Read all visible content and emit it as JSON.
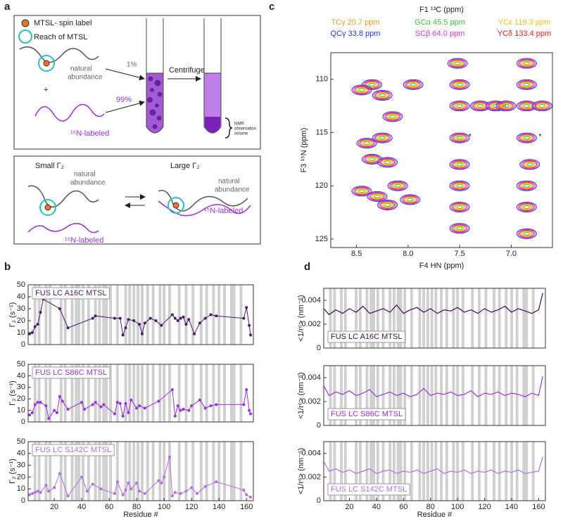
{
  "panel_labels": [
    "a",
    "b",
    "c",
    "d"
  ],
  "diagram": {
    "spin_label": "MTSL- spin label",
    "reach": "Reach of MTSL",
    "natural_abundance": [
      "natural",
      "abundance"
    ],
    "one_percent": "1%",
    "plus": "+",
    "ninety_nine_percent": "99%",
    "labeled": "¹⁵N-labeled",
    "centrifuge": "Centrifuge",
    "nmr_volume": [
      "NMR",
      "observation",
      "volume"
    ],
    "small": "Small Γ₂",
    "large": "Large Γ₂"
  },
  "shaded_residues": [
    6,
    9,
    14,
    17,
    25,
    28,
    33,
    36,
    38,
    41,
    45,
    50,
    53,
    56,
    58,
    61,
    66,
    72,
    75,
    78,
    81,
    84,
    88,
    92,
    97,
    100,
    104,
    111,
    116,
    121,
    127,
    131,
    136,
    140,
    144,
    149,
    151,
    156
  ],
  "chart_data": [
    {
      "type": "contour",
      "title": "F1 ¹³C (ppm)",
      "xlabel": "F4 HN (ppm)",
      "ylabel": "F3 ¹⁵N (ppm)",
      "xlim": [
        8.75,
        6.6
      ],
      "ylim": [
        125.8,
        107.5
      ],
      "xticks": [
        8.5,
        {
          "value": 8,
          "label": "8.0"
        },
        7.5,
        {
          "value": 7,
          "label": "7.0"
        }
      ],
      "yticks": [
        110,
        115,
        120,
        125
      ],
      "series": [
        {
          "name": "TCγ 20.7 ppm",
          "color": "#f29a1e"
        },
        {
          "name": "GCα 45.5 ppm",
          "color": "#3cc43c"
        },
        {
          "name": "YCε 119.3 ppm",
          "color": "#e8c21c"
        },
        {
          "name": "QCγ 33.8 ppm",
          "color": "#2236e0"
        },
        {
          "name": "SCβ 64.0 ppm",
          "color": "#e030e0"
        },
        {
          "name": "YCδ 133.4 ppm",
          "color": "#e01e1e"
        }
      ],
      "peaks": {
        "x": [
          8.35,
          8.25,
          8.45,
          8.4,
          8.25,
          8.35,
          8.2,
          8.45,
          8.3,
          8.2,
          8.1,
          7.98,
          8.15,
          7.95,
          7.52,
          7.5,
          7.5,
          7.5,
          7.5,
          7.5,
          7.5,
          7.5,
          6.85,
          6.85,
          6.85,
          6.85,
          6.82,
          6.85,
          6.85,
          6.85,
          7.3,
          7.15,
          7.05,
          6.7
        ],
        "y": [
          110.5,
          111.5,
          111.0,
          116.0,
          115.5,
          117.5,
          117.8,
          120.5,
          121.0,
          121.8,
          120.0,
          121.3,
          113.5,
          110.5,
          108.5,
          110.5,
          112.5,
          115.5,
          118.0,
          120.0,
          122.0,
          124.0,
          108.5,
          110.5,
          112.5,
          115.5,
          118.0,
          120.0,
          122.0,
          124.5,
          112.5,
          112.5,
          112.5,
          112.5
        ]
      },
      "annotations": [
        {
          "text": "*",
          "x": 7.4,
          "y": 115.4
        },
        {
          "text": "*",
          "x": 6.72,
          "y": 115.4
        }
      ]
    },
    {
      "type": "line",
      "markers": true,
      "legend": "upper left",
      "ylabel": "Γ₂ (s⁻¹)",
      "xlim": [
        1,
        165
      ],
      "ylim": [
        0,
        50
      ],
      "yticks": [
        0,
        10,
        20,
        30,
        40,
        50
      ],
      "x": [
        2,
        4,
        6,
        8,
        10,
        12,
        24,
        30,
        48,
        50,
        64,
        68,
        70,
        72,
        74,
        78,
        82,
        84,
        86,
        90,
        94,
        98,
        106,
        108,
        110,
        112,
        114,
        116,
        118,
        122,
        126,
        130,
        134,
        138,
        158,
        160,
        162,
        163
      ],
      "series": [
        {
          "name": "FUS LC A16C MTSL",
          "color": "#4b1c6e",
          "values": [
            9,
            10,
            15,
            17,
            27,
            38,
            30,
            14,
            22,
            24,
            22,
            22,
            8,
            14,
            21,
            20,
            17,
            9,
            18,
            22,
            20,
            16,
            25,
            22,
            20,
            22,
            23,
            17,
            21,
            9,
            18,
            22,
            25,
            24,
            22,
            31,
            16,
            8
          ]
        }
      ]
    },
    {
      "type": "line",
      "markers": true,
      "legend": "upper left",
      "ylabel": "Γ₂ (s⁻¹)",
      "xlim": [
        1,
        165
      ],
      "ylim": [
        0,
        50
      ],
      "yticks": [
        0,
        10,
        20,
        30,
        40,
        50
      ],
      "x": [
        2,
        4,
        6,
        8,
        10,
        14,
        16,
        20,
        22,
        24,
        26,
        30,
        40,
        42,
        48,
        50,
        54,
        56,
        64,
        66,
        68,
        70,
        72,
        74,
        76,
        80,
        82,
        86,
        96,
        106,
        108,
        110,
        112,
        114,
        118,
        120,
        126,
        130,
        134,
        138,
        158,
        160,
        162,
        163
      ],
      "series": [
        {
          "name": "FUS LC S86C MTSL",
          "color": "#9a30e0",
          "values": [
            6,
            8,
            15,
            17,
            17,
            14,
            3,
            10,
            8,
            22,
            18,
            11,
            17,
            11,
            15,
            17,
            13,
            15,
            7,
            17,
            16,
            5,
            16,
            8,
            19,
            12,
            14,
            12,
            18,
            28,
            5,
            14,
            10,
            11,
            10,
            14,
            19,
            12,
            14,
            15,
            15,
            28,
            10,
            7
          ]
        }
      ]
    },
    {
      "type": "line",
      "markers": true,
      "legend": "upper left",
      "ylabel": "Γ₂ (s⁻¹)",
      "xlabel": "Residue #",
      "xlim": [
        1,
        165
      ],
      "ylim": [
        0,
        50
      ],
      "yticks": [
        0,
        10,
        20,
        30,
        40,
        50
      ],
      "xticks": [
        20,
        40,
        60,
        80,
        100,
        120,
        140,
        160
      ],
      "x": [
        2,
        4,
        6,
        8,
        10,
        14,
        16,
        20,
        24,
        30,
        40,
        44,
        48,
        54,
        64,
        66,
        70,
        72,
        74,
        76,
        80,
        82,
        86,
        96,
        98,
        100,
        104,
        106,
        108,
        112,
        116,
        120,
        124,
        130,
        138,
        158,
        160,
        163
      ],
      "series": [
        {
          "name": "FUS LC S142C MTSL",
          "color": "#b070e0",
          "values": [
            5,
            6,
            7,
            8,
            7,
            13,
            8,
            11,
            23,
            4,
            20,
            8,
            14,
            10,
            6,
            16,
            5,
            9,
            15,
            10,
            15,
            8,
            6,
            17,
            15,
            20,
            37,
            4,
            7,
            6,
            8,
            11,
            6,
            12,
            16,
            9,
            5,
            3
          ]
        }
      ]
    },
    {
      "type": "line",
      "markers": false,
      "legend": "lower left",
      "ylabel": "<1/r⁶> (nm⁻⁶)",
      "xlim": [
        1,
        165
      ],
      "ylim": [
        0,
        0.005
      ],
      "yticks": [
        0,
        0.002,
        0.004
      ],
      "x": [
        1,
        5,
        10,
        15,
        20,
        25,
        30,
        35,
        40,
        45,
        50,
        55,
        60,
        65,
        70,
        75,
        80,
        85,
        90,
        95,
        100,
        105,
        110,
        115,
        120,
        125,
        130,
        135,
        140,
        145,
        150,
        155,
        160,
        163
      ],
      "series": [
        {
          "name": "FUS LC A16C MTSL",
          "color": "#3a0f55",
          "values": [
            0.0033,
            0.0028,
            0.0032,
            0.0029,
            0.0033,
            0.003,
            0.0035,
            0.0029,
            0.0031,
            0.0033,
            0.003,
            0.0036,
            0.0029,
            0.0032,
            0.0034,
            0.003,
            0.0033,
            0.0029,
            0.0032,
            0.0031,
            0.0034,
            0.003,
            0.0032,
            0.0029,
            0.0033,
            0.003,
            0.0032,
            0.0035,
            0.003,
            0.0033,
            0.0031,
            0.0029,
            0.0032,
            0.0046
          ]
        }
      ]
    },
    {
      "type": "line",
      "markers": false,
      "legend": "lower left",
      "ylabel": "<1/r⁶> (nm⁻⁶)",
      "xlim": [
        1,
        165
      ],
      "ylim": [
        0,
        0.005
      ],
      "yticks": [
        0,
        0.002,
        0.004
      ],
      "x": [
        1,
        5,
        10,
        15,
        20,
        25,
        30,
        35,
        40,
        45,
        50,
        55,
        60,
        65,
        70,
        75,
        80,
        85,
        90,
        95,
        100,
        105,
        110,
        115,
        120,
        125,
        130,
        135,
        140,
        145,
        150,
        155,
        160,
        163
      ],
      "series": [
        {
          "name": "FUS LC S86C MTSL",
          "color": "#9a30e0",
          "values": [
            0.0033,
            0.0025,
            0.0028,
            0.0026,
            0.0029,
            0.0025,
            0.0027,
            0.003,
            0.0024,
            0.0026,
            0.0028,
            0.0025,
            0.0027,
            0.0024,
            0.0026,
            0.0031,
            0.0025,
            0.0027,
            0.0026,
            0.0028,
            0.0025,
            0.0026,
            0.0029,
            0.0024,
            0.0027,
            0.0026,
            0.0028,
            0.0025,
            0.0027,
            0.0026,
            0.0024,
            0.0027,
            0.0025,
            0.0041
          ]
        }
      ]
    },
    {
      "type": "line",
      "markers": false,
      "legend": "lower left",
      "ylabel": "<1/r⁶> (nm⁻⁶)",
      "xlabel": "Residue #",
      "xlim": [
        1,
        165
      ],
      "ylim": [
        0,
        0.005
      ],
      "yticks": [
        0,
        0.002,
        0.004
      ],
      "xticks": [
        20,
        40,
        60,
        80,
        100,
        120,
        140,
        160
      ],
      "x": [
        1,
        5,
        10,
        15,
        20,
        25,
        30,
        35,
        40,
        45,
        50,
        55,
        60,
        65,
        70,
        75,
        80,
        85,
        90,
        95,
        100,
        105,
        110,
        115,
        120,
        125,
        130,
        135,
        140,
        145,
        150,
        155,
        160,
        163
      ],
      "series": [
        {
          "name": "FUS LC S142C MTSL",
          "color": "#b070e0",
          "values": [
            0.0033,
            0.0025,
            0.0027,
            0.0024,
            0.0026,
            0.0023,
            0.0025,
            0.0027,
            0.0023,
            0.0025,
            0.0026,
            0.0023,
            0.0025,
            0.0024,
            0.0026,
            0.0023,
            0.0025,
            0.0027,
            0.0023,
            0.0025,
            0.0024,
            0.0026,
            0.0023,
            0.0025,
            0.0024,
            0.0026,
            0.0023,
            0.0025,
            0.0024,
            0.0026,
            0.0023,
            0.0024,
            0.0025,
            0.0037
          ]
        }
      ]
    }
  ]
}
